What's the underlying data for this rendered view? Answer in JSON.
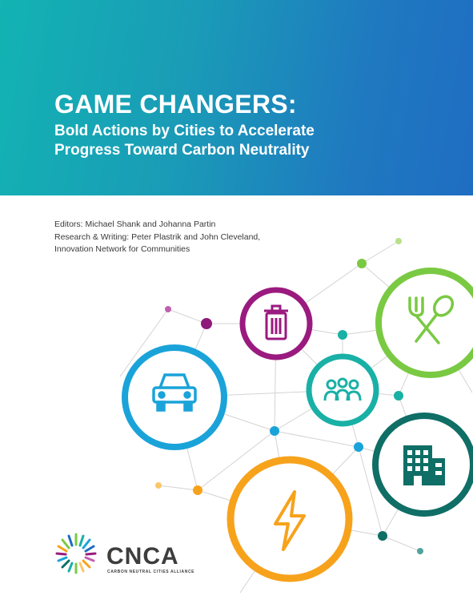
{
  "cover": {
    "title": "GAME CHANGERS:",
    "subtitle_line1": "Bold Actions by Cities to Accelerate",
    "subtitle_line2": "Progress Toward Carbon Neutrality"
  },
  "credits": {
    "editors": "Editors: Michael Shank and Johanna Partin",
    "research_line1": "Research & Writing: Peter Plastrik and John Cleveland,",
    "research_line2": "Innovation Network for Communities"
  },
  "logo": {
    "abbr": "CNCA",
    "full_name": "CARBON NEUTRAL CITIES ALLIANCE"
  },
  "icons": {
    "waste": "trash-can-icon",
    "food": "fork-spoon-icon",
    "transport": "car-icon",
    "community": "people-group-icon",
    "buildings": "building-icon",
    "energy": "lightning-bolt-icon"
  },
  "colors": {
    "header_teal": "#12b3b3",
    "header_blue": "#1f6dc2",
    "waste_purple": "#9a1a7f",
    "food_green": "#7ac943",
    "transport_blue": "#1aa3d9",
    "community_teal": "#19b0a6",
    "buildings_teal": "#0f6e66",
    "energy_orange": "#f7a21b"
  }
}
